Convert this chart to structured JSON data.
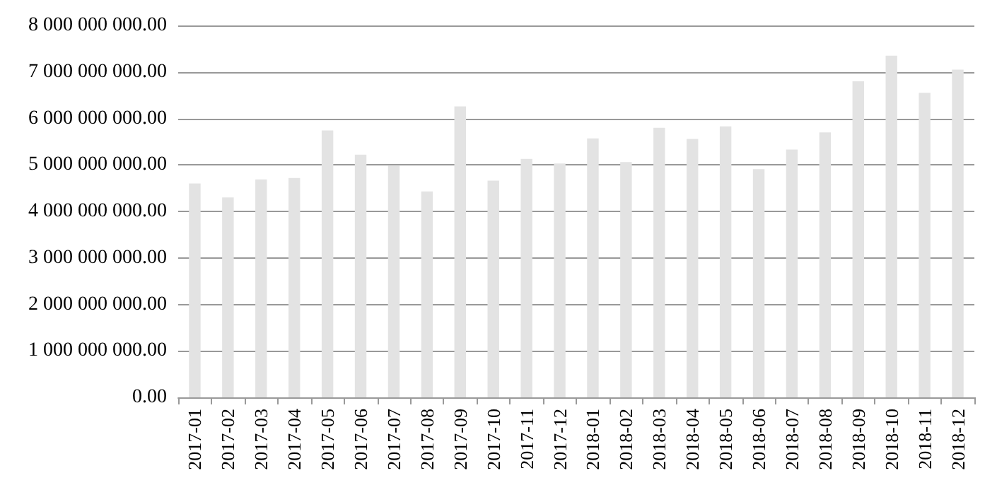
{
  "chart_data": {
    "type": "bar",
    "categories": [
      "2017-01",
      "2017-02",
      "2017-03",
      "2017-04",
      "2017-05",
      "2017-06",
      "2017-07",
      "2017-08",
      "2017-09",
      "2017-10",
      "2017-11",
      "2017-12",
      "2018-01",
      "2018-02",
      "2018-03",
      "2018-04",
      "2018-05",
      "2018-06",
      "2018-07",
      "2018-08",
      "2018-09",
      "2018-10",
      "2018-11",
      "2018-12"
    ],
    "values": [
      4600000000,
      4300000000,
      4690000000,
      4720000000,
      5740000000,
      5220000000,
      4980000000,
      4430000000,
      6260000000,
      4660000000,
      5130000000,
      5030000000,
      5570000000,
      5060000000,
      5800000000,
      5560000000,
      5830000000,
      4910000000,
      5330000000,
      5700000000,
      6800000000,
      7350000000,
      6550000000,
      7050000000
    ],
    "color": "#e3e3e3",
    "ylim": [
      0,
      8000000000
    ],
    "yticks": [
      {
        "value": 0,
        "label": "0.00"
      },
      {
        "value": 1000000000,
        "label": "1 000 000 000.00"
      },
      {
        "value": 2000000000,
        "label": "2 000 000 000.00"
      },
      {
        "value": 3000000000,
        "label": "3 000 000 000.00"
      },
      {
        "value": 4000000000,
        "label": "4 000 000 000.00"
      },
      {
        "value": 5000000000,
        "label": "5 000 000 000.00"
      },
      {
        "value": 6000000000,
        "label": "6 000 000 000.00"
      },
      {
        "value": 7000000000,
        "label": "7 000 000 000.00"
      },
      {
        "value": 8000000000,
        "label": "8 000 000 000.00"
      }
    ],
    "grid": "y"
  }
}
